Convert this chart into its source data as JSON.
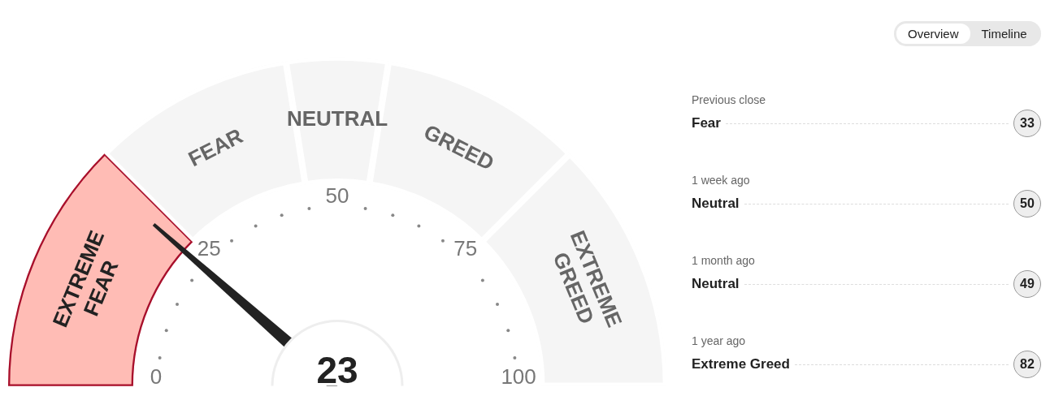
{
  "chart_data": {
    "type": "donut",
    "categories": [
      "EXTREME FEAR",
      "FEAR",
      "NEUTRAL",
      "GREED",
      "EXTREME GREED"
    ],
    "values": [
      25,
      20,
      10,
      20,
      25
    ],
    "colors": [
      "#ffbcb5",
      "#f5f5f5",
      "#f5f5f5",
      "#f5f5f5",
      "#f5f5f5"
    ],
    "needle": "EXTREME FEAR",
    "annotations": [
      "0",
      "25",
      "50",
      "75",
      "100",
      "23",
      "Overview",
      "Timeline",
      "Previous close",
      "Fear",
      "33",
      "1 week ago",
      "Neutral",
      "50",
      "1 month ago",
      "Neutral",
      "49",
      "1 year ago",
      "Extreme Greed",
      "82"
    ]
  }
}
